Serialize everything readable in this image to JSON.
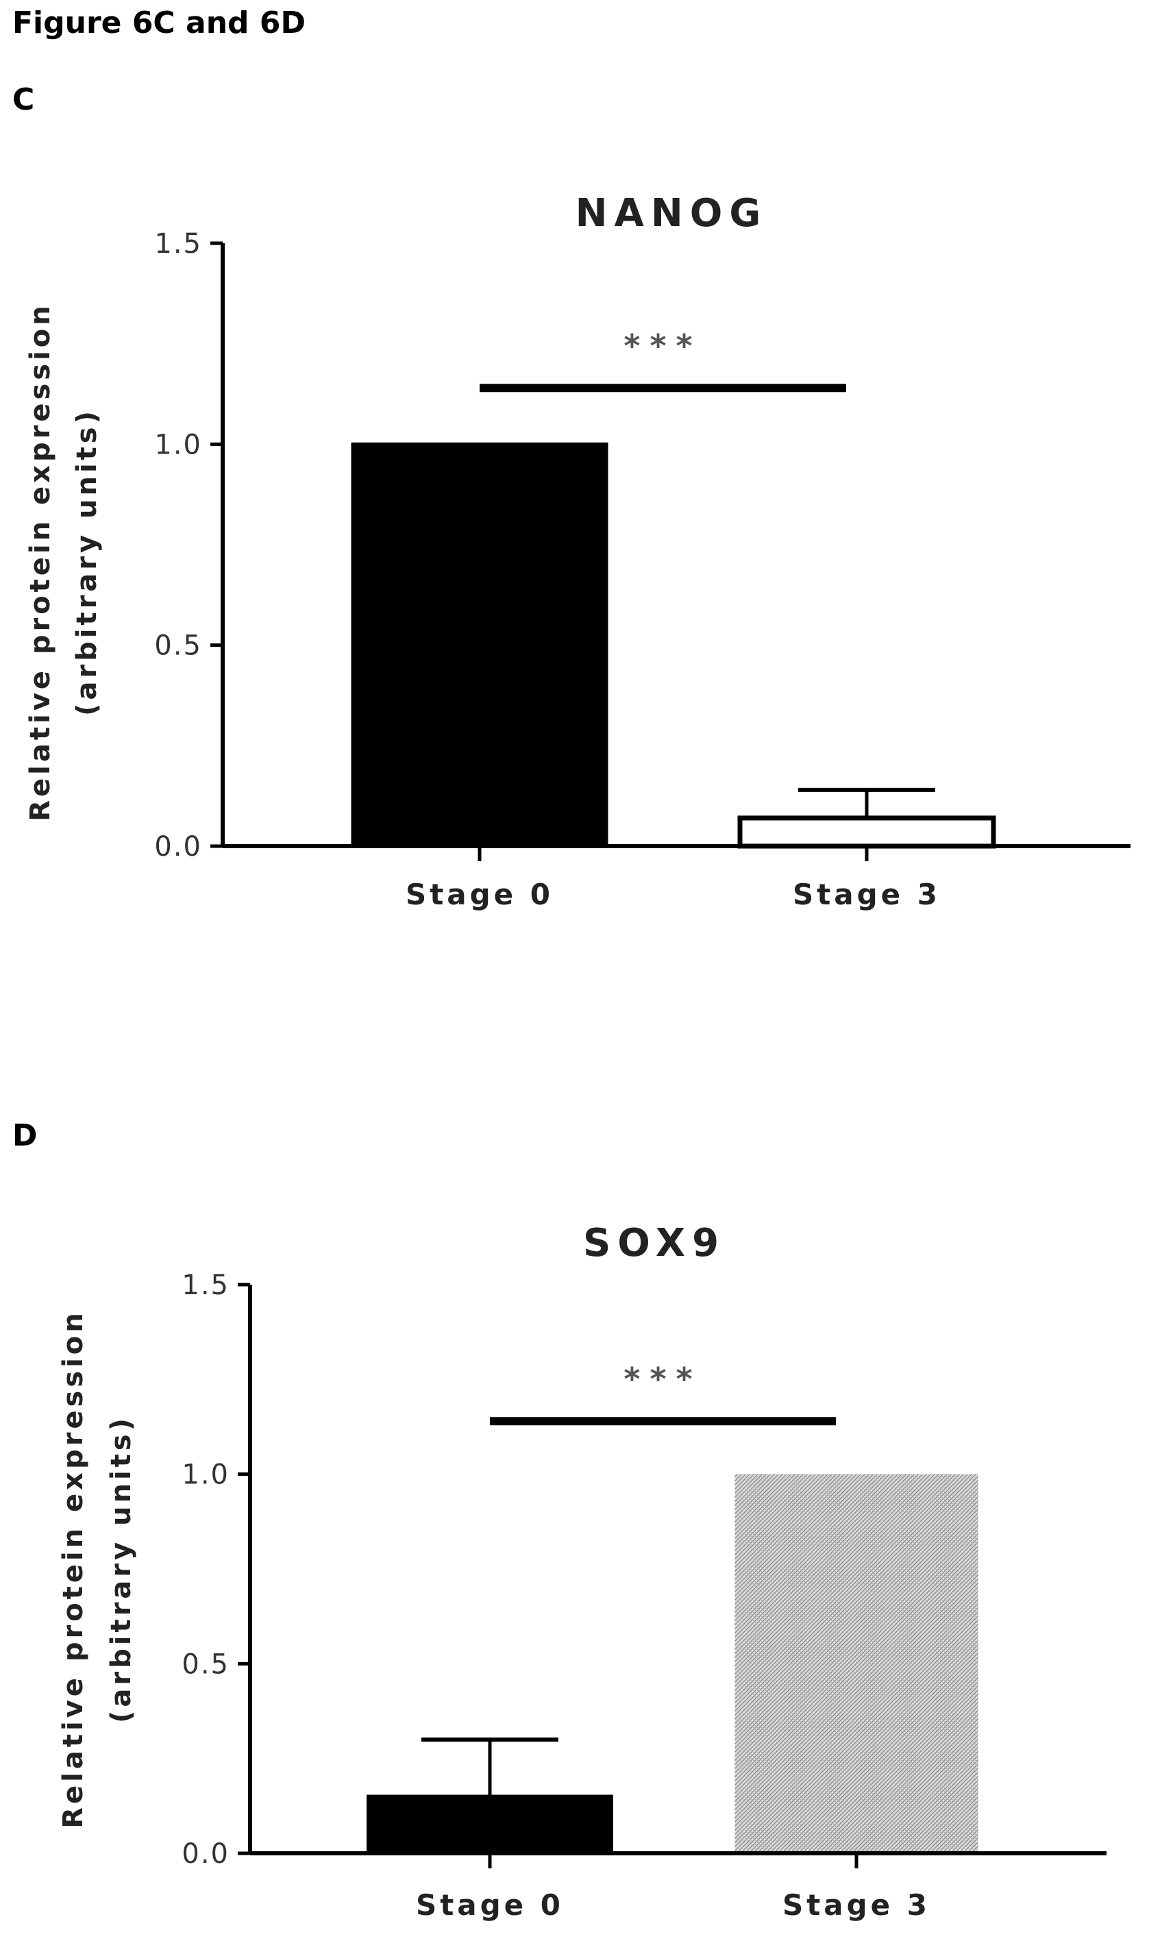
{
  "figure_title": "Figure 6C and 6D",
  "panels": [
    {
      "letter": "C"
    },
    {
      "letter": "D"
    }
  ],
  "chart_data": [
    {
      "type": "bar",
      "title": "NANOG",
      "xlabel": "",
      "ylabel_lines": [
        "Relative protein expression",
        "(arbitrary units)"
      ],
      "categories": [
        "Stage 0",
        "Stage 3"
      ],
      "values": [
        1.0,
        0.07
      ],
      "error_upper": [
        0.0,
        0.07
      ],
      "bar_styles": [
        "solid-black",
        "white-outline"
      ],
      "ylim": [
        0,
        1.5
      ],
      "yticks": [
        0.0,
        0.5,
        1.0,
        1.5
      ],
      "ytick_labels": [
        "0.0",
        "0.5",
        "1.0",
        "1.5"
      ],
      "significance": {
        "label": "***",
        "between": [
          "Stage 0",
          "Stage 3"
        ],
        "bar_y": 1.14
      },
      "grid": false,
      "colors": {
        "solid": "#000000",
        "outline": "#000000",
        "hatched": "#c9c9c9"
      }
    },
    {
      "type": "bar",
      "title": "SOX9",
      "xlabel": "",
      "ylabel_lines": [
        "Relative protein expression",
        "(arbitrary units)"
      ],
      "categories": [
        "Stage 0",
        "Stage 3"
      ],
      "values": [
        0.15,
        1.0
      ],
      "error_upper": [
        0.15,
        0.0
      ],
      "bar_styles": [
        "solid-black",
        "hatched-gray"
      ],
      "ylim": [
        0,
        1.5
      ],
      "yticks": [
        0.0,
        0.5,
        1.0,
        1.5
      ],
      "ytick_labels": [
        "0.0",
        "0.5",
        "1.0",
        "1.5"
      ],
      "significance": {
        "label": "***",
        "between": [
          "Stage 0",
          "Stage 3"
        ],
        "bar_y": 1.14
      },
      "grid": false,
      "colors": {
        "solid": "#000000",
        "outline": "#000000",
        "hatched": "#c9c9c9"
      }
    }
  ]
}
